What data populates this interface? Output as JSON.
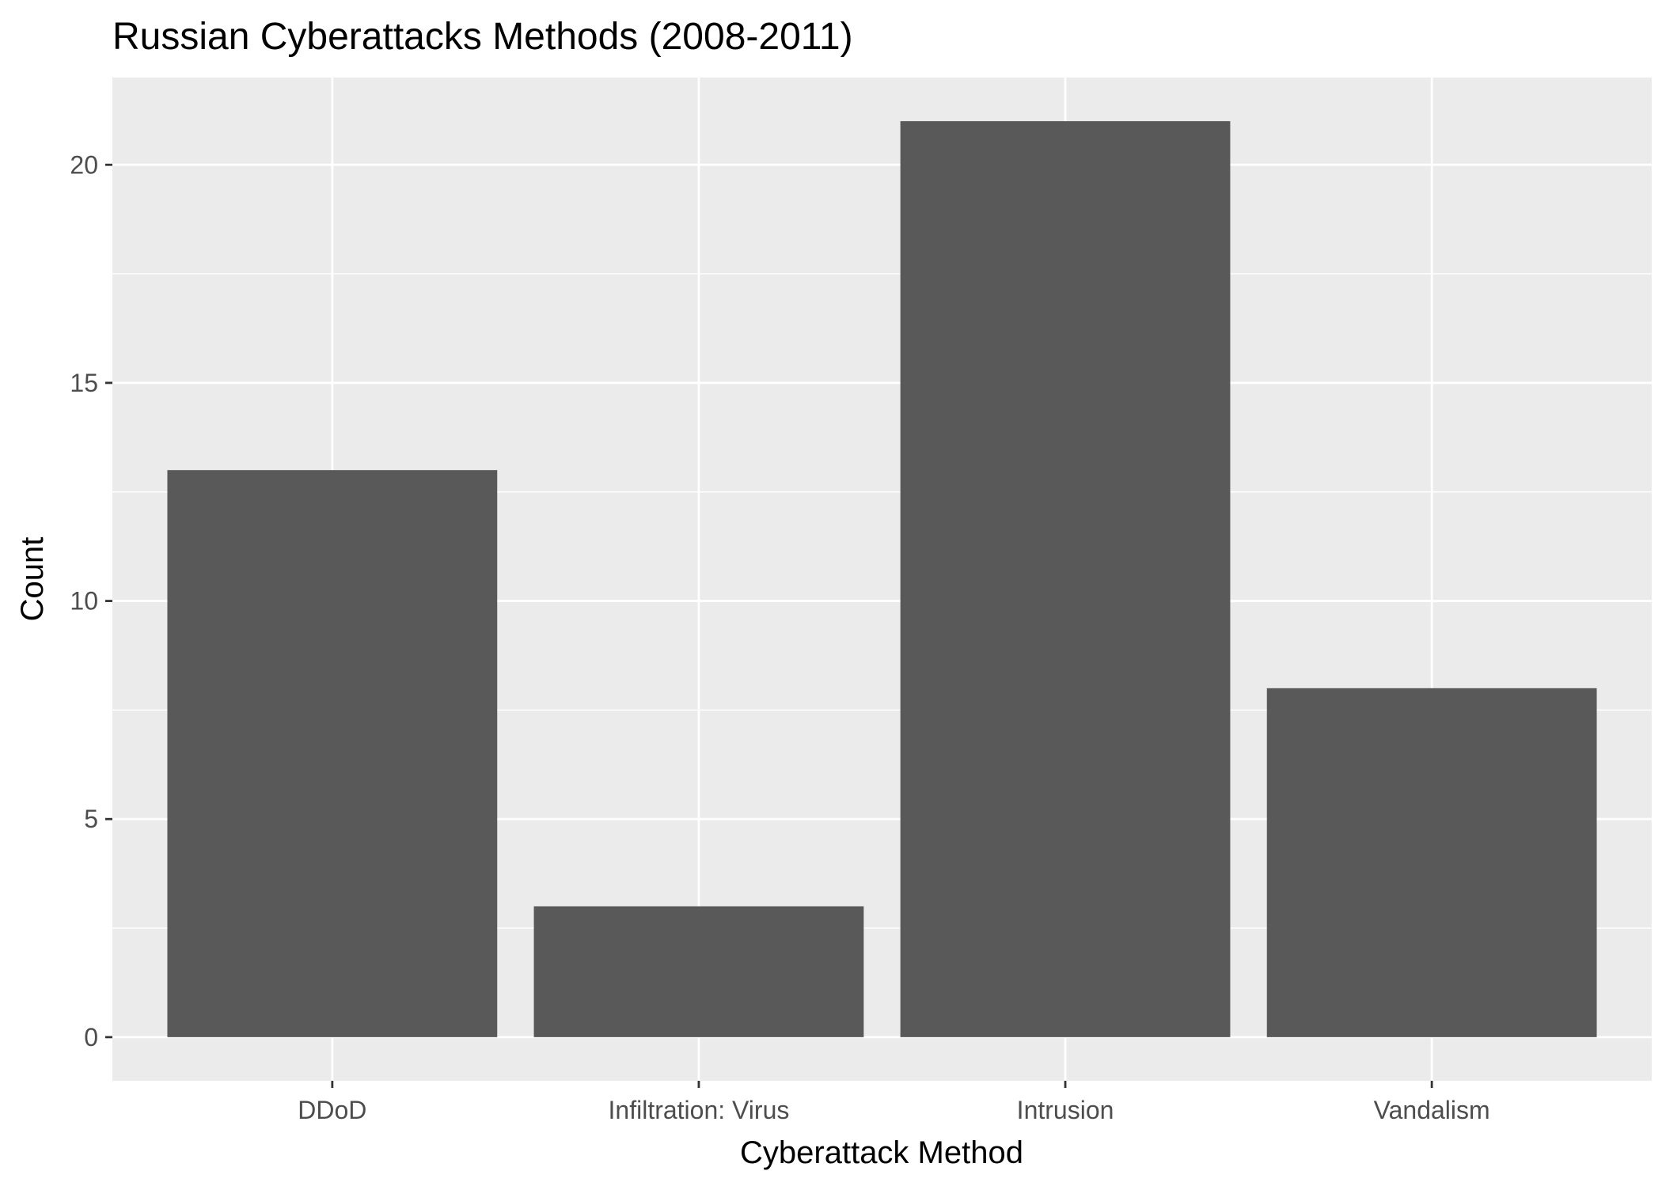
{
  "chart_data": {
    "type": "bar",
    "title": "Russian Cyberattacks Methods (2008-2011)",
    "xlabel": "Cyberattack Method",
    "ylabel": "Count",
    "categories": [
      "DDoD",
      "Infiltration: Virus",
      "Intrusion",
      "Vandalism"
    ],
    "values": [
      13,
      3,
      21,
      8
    ],
    "ylim": [
      -1,
      22
    ],
    "yticks": [
      0,
      5,
      10,
      15,
      20
    ],
    "grid": true,
    "colors": {
      "bar": "#595959",
      "panel_background": "#ebebeb",
      "grid": "#ffffff",
      "tick_text": "#4d4d4d",
      "tick_mark": "#333333"
    }
  }
}
